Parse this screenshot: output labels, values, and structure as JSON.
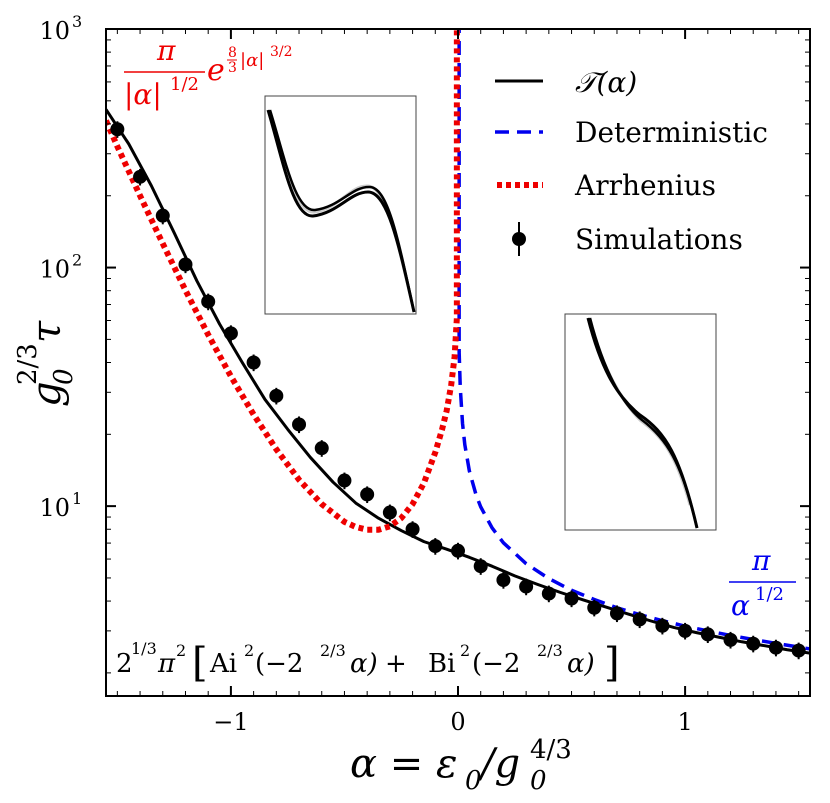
{
  "chart_data": {
    "type": "line",
    "title": "",
    "xlabel": "α = ε₀/g₀^{4/3}",
    "ylabel": "g₀^{2/3} τ",
    "xlim": [
      -1.55,
      1.55
    ],
    "ylim": [
      1.6,
      1000
    ],
    "yscale": "log",
    "grid": false,
    "legend_position": "top-right",
    "xticks": [
      -1,
      0,
      1
    ],
    "xtick_labels": [
      "−1",
      "0",
      "1"
    ],
    "yticks": [
      10,
      100,
      1000
    ],
    "ytick_labels": [
      "10",
      "10",
      "10"
    ],
    "ytick_exponents": [
      "1",
      "2",
      "3"
    ],
    "series": [
      {
        "name": "𝒯(α)",
        "style": "solid",
        "color": "#000000",
        "x": [
          -1.55,
          -1.45,
          -1.35,
          -1.25,
          -1.15,
          -1.05,
          -0.95,
          -0.85,
          -0.75,
          -0.65,
          -0.55,
          -0.45,
          -0.35,
          -0.25,
          -0.15,
          -0.05,
          0.05,
          0.15,
          0.25,
          0.35,
          0.45,
          0.55,
          0.65,
          0.75,
          0.85,
          0.95,
          1.05,
          1.15,
          1.25,
          1.35,
          1.45,
          1.55
        ],
        "y": [
          460,
          330,
          220,
          140,
          88,
          58,
          40,
          28,
          21,
          16,
          12.6,
          10.3,
          8.9,
          7.9,
          7.1,
          6.6,
          6.1,
          5.6,
          5.1,
          4.7,
          4.35,
          4.05,
          3.78,
          3.53,
          3.3,
          3.1,
          2.95,
          2.82,
          2.7,
          2.6,
          2.5,
          2.42
        ]
      },
      {
        "name": "Deterministic",
        "style": "dashed",
        "color": "#0000ee",
        "x": [
          0.005,
          0.01,
          0.02,
          0.03,
          0.05,
          0.08,
          0.1,
          0.15,
          0.2,
          0.3,
          0.4,
          0.5,
          0.6,
          0.7,
          0.8,
          0.9,
          1.0,
          1.1,
          1.2,
          1.3,
          1.4,
          1.55
        ],
        "y": [
          44.4,
          31.4,
          22.2,
          18.1,
          14.05,
          11.1,
          9.93,
          8.11,
          7.02,
          5.74,
          4.97,
          4.44,
          4.06,
          3.75,
          3.51,
          3.31,
          3.14,
          3.0,
          2.87,
          2.76,
          2.66,
          2.52
        ]
      },
      {
        "name": "Arrhenius",
        "style": "dotted",
        "color": "#ee0000",
        "x": [
          -1.55,
          -1.5,
          -1.4,
          -1.3,
          -1.2,
          -1.1,
          -1.0,
          -0.9,
          -0.8,
          -0.7,
          -0.6,
          -0.5,
          -0.45,
          -0.4,
          -0.35,
          -0.3,
          -0.25,
          -0.2,
          -0.15,
          -0.1,
          -0.07,
          -0.05,
          -0.03,
          -0.015,
          -0.005
        ],
        "y": [
          413,
          322,
          200,
          126,
          80.3,
          52.3,
          35.0,
          24.2,
          17.3,
          12.9,
          10.2,
          8.59,
          8.18,
          7.96,
          7.96,
          8.23,
          8.91,
          10.2,
          12.5,
          16.8,
          21.0,
          25.1,
          32.2,
          42.3,
          61.4
        ]
      },
      {
        "name": "Simulations",
        "style": "markers",
        "color": "#000000",
        "x": [
          -1.5,
          -1.4,
          -1.3,
          -1.2,
          -1.1,
          -1.0,
          -0.9,
          -0.8,
          -0.7,
          -0.6,
          -0.5,
          -0.4,
          -0.3,
          -0.2,
          -0.1,
          0.0,
          0.1,
          0.2,
          0.3,
          0.4,
          0.5,
          0.6,
          0.7,
          0.8,
          0.9,
          1.0,
          1.1,
          1.2,
          1.3,
          1.4,
          1.5
        ],
        "y": [
          380,
          240,
          165,
          103,
          72,
          53,
          40,
          29,
          22,
          17.5,
          12.8,
          11.2,
          9.4,
          8.0,
          6.8,
          6.5,
          5.6,
          4.9,
          4.6,
          4.3,
          4.1,
          3.75,
          3.55,
          3.35,
          3.15,
          3.0,
          2.9,
          2.75,
          2.65,
          2.55,
          2.48
        ]
      }
    ],
    "annotations": {
      "arrhenius_formula": {
        "num": "π",
        "den": "|α|",
        "den_exp": "1/2",
        "e": "e",
        "exp_frac_num": "8",
        "exp_frac_den": "3",
        "exp_tail": "|α|",
        "exp_tail_pow": "3/2",
        "color": "#ee0000"
      },
      "deterministic_formula": {
        "num": "π",
        "den": "α",
        "den_exp": "1/2",
        "color": "#0000ee"
      },
      "exact_formula": {
        "prefix": "2",
        "prefix_exp": "1/3",
        "pi": "π",
        "pi_exp": "2",
        "lb": "[",
        "ai": "Ai",
        "ai_exp": "2",
        "arg1": "(−2",
        "arg_exp": "2/3",
        "arg_tail": "α)",
        "plus": " + ",
        "bi": "Bi",
        "bi_exp": "2",
        "arg2": "(−2",
        "arg2_tail": "α)",
        "rb": "]"
      }
    }
  },
  "legend": [
    {
      "label": "𝒯(α)",
      "style": "solid",
      "color": "#000000"
    },
    {
      "label": "Deterministic",
      "style": "dashed",
      "color": "#0000ee"
    },
    {
      "label": "Arrhenius",
      "style": "dotted",
      "color": "#ee0000"
    },
    {
      "label": "Simulations",
      "style": "markers",
      "color": "#000000"
    }
  ],
  "axis_text": {
    "xlabel_a": "α = ε",
    "xlabel_sub": "0",
    "xlabel_slash": "/g",
    "xlabel_sub2": "0",
    "xlabel_sup": "4/3",
    "ylabel_g": "g",
    "ylabel_sub": "0",
    "ylabel_sup": "2/3",
    "ylabel_tau": "τ"
  }
}
